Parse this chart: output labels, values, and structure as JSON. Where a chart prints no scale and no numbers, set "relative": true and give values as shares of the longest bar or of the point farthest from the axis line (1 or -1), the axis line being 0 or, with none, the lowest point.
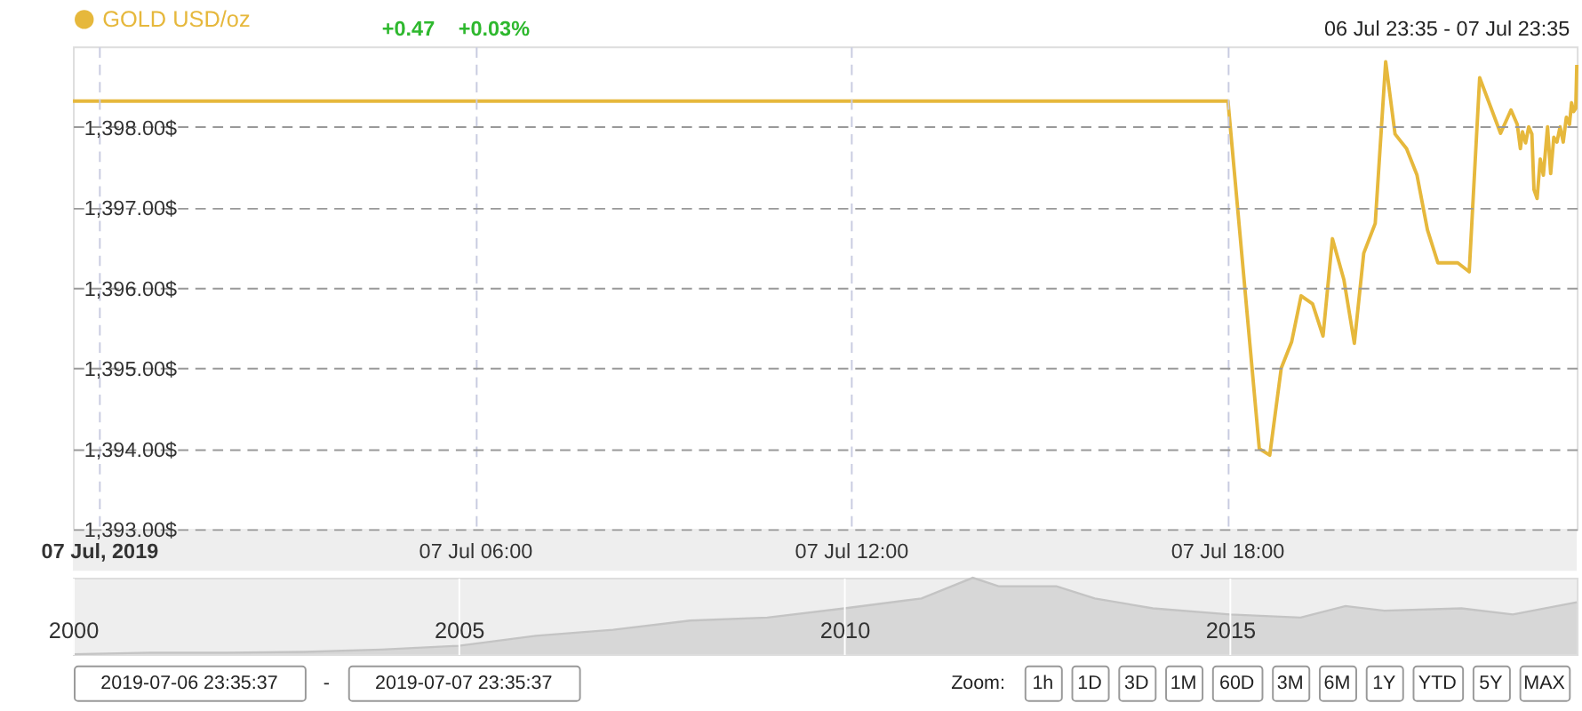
{
  "chart_data": [
    {
      "type": "line",
      "x": [
        "2019-07-06T23:35",
        "2019-07-07T18:01",
        "2019-07-07T18:31",
        "2019-07-07T18:41",
        "2019-07-07T18:52",
        "2019-07-07T19:02",
        "2019-07-07T19:11",
        "2019-07-07T19:22",
        "2019-07-07T19:32",
        "2019-07-07T19:41",
        "2019-07-07T19:52",
        "2019-07-07T20:02",
        "2019-07-07T20:11",
        "2019-07-07T20:22",
        "2019-07-07T20:32",
        "2019-07-07T20:41",
        "2019-07-07T20:52",
        "2019-07-07T21:02",
        "2019-07-07T21:12",
        "2019-07-07T21:22",
        "2019-07-07T21:41",
        "2019-07-07T21:52",
        "2019-07-07T22:02",
        "2019-07-07T22:22",
        "2019-07-07T22:32",
        "2019-07-07T22:38",
        "2019-07-07T22:41",
        "2019-07-07T22:43",
        "2019-07-07T22:46",
        "2019-07-07T22:49",
        "2019-07-07T22:52",
        "2019-07-07T22:54",
        "2019-07-07T22:57",
        "2019-07-07T23:00",
        "2019-07-07T23:03",
        "2019-07-07T23:07",
        "2019-07-07T23:10",
        "2019-07-07T23:13",
        "2019-07-07T23:16",
        "2019-07-07T23:19",
        "2019-07-07T23:22",
        "2019-07-07T23:25",
        "2019-07-07T23:28",
        "2019-07-07T23:30",
        "2019-07-07T23:32",
        "2019-07-07T23:34",
        "2019-07-07T23:35"
      ],
      "series": [
        {
          "name": "GOLD USD/oz",
          "color": "#e6b83c",
          "values": [
            1398.32,
            1398.32,
            1394.0,
            1393.92,
            1395.0,
            1395.33,
            1395.9,
            1395.8,
            1395.4,
            1396.61,
            1396.1,
            1395.31,
            1396.43,
            1396.8,
            1398.81,
            1397.91,
            1397.73,
            1397.4,
            1396.72,
            1396.31,
            1396.31,
            1396.2,
            1398.61,
            1397.92,
            1398.21,
            1398.03,
            1397.73,
            1397.94,
            1397.8,
            1398.0,
            1397.91,
            1397.22,
            1397.11,
            1397.6,
            1397.4,
            1398.0,
            1397.42,
            1397.87,
            1397.81,
            1398.0,
            1397.81,
            1398.12,
            1398.03,
            1398.3,
            1398.19,
            1398.23,
            1398.77
          ]
        }
      ],
      "xlim": [
        "2019-07-06T23:35",
        "2019-07-07T23:35"
      ],
      "xticks": [
        {
          "value": "2019-07-07T00:00",
          "label": "07 Jul, 2019"
        },
        {
          "value": "2019-07-07T06:00",
          "label": "07 Jul 06:00"
        },
        {
          "value": "2019-07-07T12:00",
          "label": "07 Jul 12:00"
        },
        {
          "value": "2019-07-07T18:00",
          "label": "07 Jul 18:00"
        }
      ],
      "ylim": [
        1393,
        1399
      ],
      "yticks": [
        {
          "value": 1393,
          "label": "1,393.00$"
        },
        {
          "value": 1394,
          "label": "1,394.00$"
        },
        {
          "value": 1395,
          "label": "1,395.00$"
        },
        {
          "value": 1396,
          "label": "1,396.00$"
        },
        {
          "value": 1397,
          "label": "1,397.00$"
        },
        {
          "value": 1398,
          "label": "1,398.00$"
        }
      ],
      "grid": true,
      "legend": "top left",
      "marker": "none",
      "line_style": "solid",
      "annotations": [
        "+0.47",
        "+0.03%",
        "06 Jul 23:35 - 07 Jul 23:35"
      ]
    },
    {
      "type": "area",
      "relative": true,
      "x": [
        "2000-01",
        "2001-01",
        "2002-01",
        "2003-01",
        "2004-01",
        "2005-01",
        "2006-01",
        "2007-01",
        "2008-01",
        "2009-01",
        "2010-01",
        "2011-01",
        "2011-09",
        "2012-01",
        "2012-10",
        "2013-04",
        "2014-01",
        "2015-01",
        "2015-12",
        "2016-07",
        "2017-01",
        "2018-01",
        "2018-09",
        "2019-07"
      ],
      "series": [
        {
          "color": "#c4c4c4",
          "values": [
            0,
            0.02,
            0.02,
            0.03,
            0.06,
            0.11,
            0.24,
            0.32,
            0.44,
            0.48,
            0.6,
            0.73,
            1.0,
            0.89,
            0.89,
            0.73,
            0.6,
            0.52,
            0.48,
            0.63,
            0.57,
            0.6,
            0.52,
            0.68
          ]
        }
      ],
      "xlim": [
        "2000-01",
        "2019-07"
      ],
      "xticks": [
        {
          "value": "2000-01-01",
          "label": "2000"
        },
        {
          "value": "2005-01-01",
          "label": "2005"
        },
        {
          "value": "2010-01-01",
          "label": "2010"
        },
        {
          "value": "2015-01-01",
          "label": "2015"
        }
      ],
      "grid": "x",
      "annotations": [
        "2019-07-06 23:35:37",
        "-",
        "2019-07-07 23:35:37",
        "Zoom:",
        "1h",
        "1D",
        "3D",
        "1M",
        "60D",
        "3M",
        "6M",
        "1Y",
        "YTD",
        "5Y",
        "MAX"
      ]
    }
  ]
}
